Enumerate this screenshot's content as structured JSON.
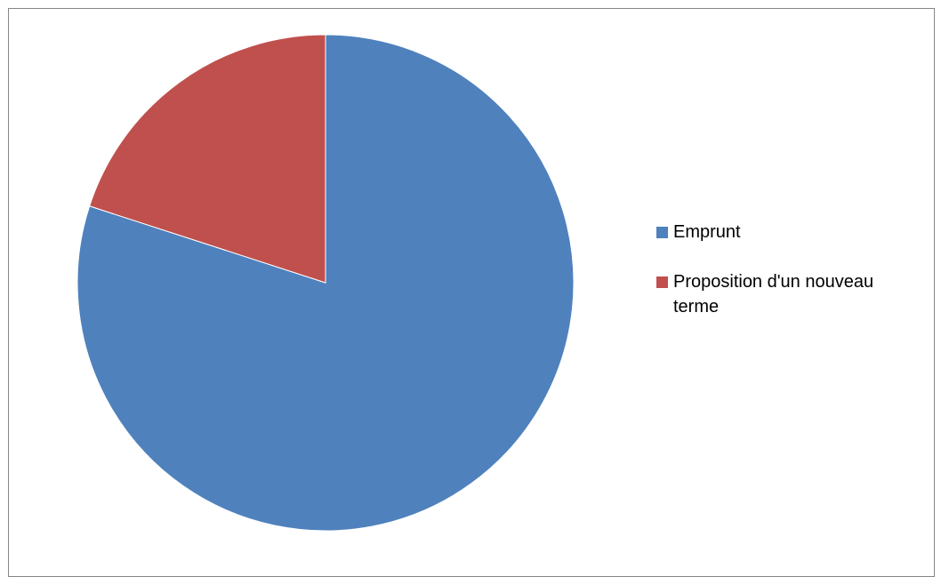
{
  "chart_data": {
    "type": "pie",
    "title": "",
    "categories": [
      "Emprunt",
      "Proposition d'un nouveau terme"
    ],
    "values": [
      80,
      20
    ],
    "colors": [
      "#4F81BD",
      "#C0504D"
    ],
    "start_angle_degrees": 0,
    "direction": "clockwise",
    "legend_position": "right"
  }
}
